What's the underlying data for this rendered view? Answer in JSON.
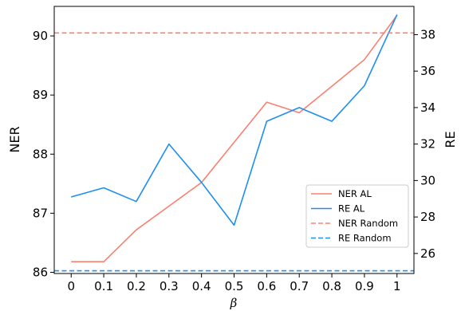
{
  "chart_data": {
    "type": "line",
    "x": [
      0,
      0.1,
      0.2,
      0.3,
      0.4,
      0.5,
      0.6,
      0.7,
      0.8,
      0.9,
      1
    ],
    "x_tick_labels": [
      "0",
      "0.1",
      "0.2",
      "0.3",
      "0.4",
      "0.5",
      "0.6",
      "0.7",
      "0.8",
      "0.9",
      "1"
    ],
    "xlabel": "β",
    "ylabel_left": "NER",
    "ylabel_right": "RE",
    "ylim_left": [
      85.98,
      90.5
    ],
    "ylim_right": [
      24.9,
      39.55
    ],
    "yticks_left": [
      86,
      87,
      88,
      89,
      90
    ],
    "yticks_right": [
      26,
      28,
      30,
      32,
      34,
      36,
      38
    ],
    "series": [
      {
        "name": "NER AL",
        "axis": "left",
        "style": "solid",
        "color": "#fa8072",
        "values": [
          86.18,
          86.18,
          86.72,
          87.12,
          87.52,
          88.2,
          88.88,
          88.7,
          89.15,
          89.6,
          90.35
        ]
      },
      {
        "name": "RE AL",
        "axis": "right",
        "style": "solid",
        "color": "#1e8ff0",
        "values": [
          29.1,
          29.6,
          28.85,
          32.0,
          29.9,
          27.55,
          33.25,
          34.0,
          33.25,
          35.2,
          39.1
        ]
      },
      {
        "name": "NER Random",
        "axis": "left",
        "style": "dashed",
        "color": "#fa8072",
        "value": 90.05
      },
      {
        "name": "RE Random",
        "axis": "right",
        "style": "dashed",
        "color": "#1e8ff0",
        "value": 25.05
      }
    ],
    "legend_position": "lower-right",
    "grid": false
  }
}
